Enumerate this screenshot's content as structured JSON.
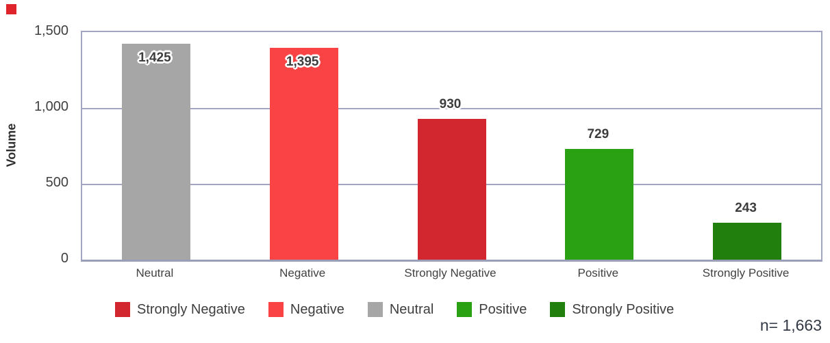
{
  "chart_data": {
    "type": "bar",
    "title": "",
    "xlabel": "",
    "ylabel": "Volume",
    "categories": [
      "Neutral",
      "Negative",
      "Strongly Negative",
      "Positive",
      "Strongly Positive"
    ],
    "values": [
      1425,
      1395,
      930,
      729,
      243
    ],
    "value_labels": [
      "1,425",
      "1,395",
      "930",
      "729",
      "243"
    ],
    "bar_colors": [
      "#a6a6a6",
      "#f94345",
      "#d2272f",
      "#2aa112",
      "#217f0e"
    ],
    "ylim": [
      0,
      1500
    ],
    "yticks": [
      0,
      500,
      1000,
      1500
    ],
    "ytick_labels": [
      "0",
      "500",
      "1,000",
      "1,500"
    ],
    "gridline_values": [
      500,
      1000
    ],
    "grid": true,
    "legend_position": "bottom",
    "legend": [
      {
        "label": "Strongly Negative",
        "color": "#d2272f"
      },
      {
        "label": "Negative",
        "color": "#f94345"
      },
      {
        "label": "Neutral",
        "color": "#a6a6a6"
      },
      {
        "label": "Positive",
        "color": "#2aa112"
      },
      {
        "label": "Strongly Positive",
        "color": "#217f0e"
      }
    ],
    "annotation": "n= 1,663"
  },
  "style": {
    "axis_color": "#a2a5c2",
    "baseline_color": "#9b9eb9",
    "corner_square_color": "#e0242c"
  }
}
